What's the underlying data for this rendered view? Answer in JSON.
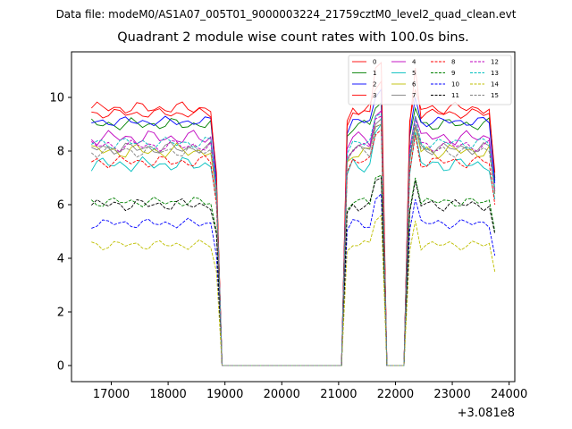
{
  "suptitle": "Data file: modeM0/AS1A07_005T01_9000003224_21759cztM0_level2_quad_clean.evt",
  "chart_data": {
    "type": "line",
    "title": "Quadrant 2 module wise count rates with 100.0s bins.",
    "xlabel": "",
    "ylabel": "",
    "x_offset_label": "+3.081e8",
    "x_offset": 308100000,
    "xlim": [
      16300,
      24100
    ],
    "ylim": [
      -0.6,
      11.7
    ],
    "x_ticks": [
      17000,
      18000,
      19000,
      20000,
      21000,
      22000,
      23000,
      24000
    ],
    "x_tick_labels": [
      "17000",
      "18000",
      "19000",
      "20000",
      "21000",
      "22000",
      "23000",
      "24000"
    ],
    "y_ticks": [
      0,
      2,
      4,
      6,
      8,
      10
    ],
    "y_tick_labels": [
      "0",
      "2",
      "4",
      "6",
      "8",
      "10"
    ],
    "grid": false,
    "legend_position": "top-right",
    "legend_columns": 4,
    "bin_seconds": 100,
    "x_start": 16650,
    "segments": [
      {
        "start": 16650,
        "end": 18850,
        "state": "on"
      },
      {
        "start": 18950,
        "end": 21050,
        "state": "off"
      },
      {
        "start": 21150,
        "end": 21750,
        "state": "on"
      },
      {
        "start": 21850,
        "end": 22150,
        "state": "off"
      },
      {
        "start": 22250,
        "end": 23750,
        "state": "on"
      }
    ],
    "series": [
      {
        "name": "0",
        "color": "#ff0000",
        "dash": "solid",
        "level": 9.6,
        "amp": 0.25,
        "peak1": 10.3,
        "peak2": 10.6,
        "last": 7.0
      },
      {
        "name": "1",
        "color": "#008000",
        "dash": "solid",
        "level": 9.0,
        "amp": 0.25,
        "peak1": 9.6,
        "peak2": 9.8,
        "last": 6.9
      },
      {
        "name": "2",
        "color": "#0000ff",
        "dash": "solid",
        "level": 9.1,
        "amp": 0.2,
        "peak1": 10.0,
        "peak2": 10.3,
        "last": 6.8
      },
      {
        "name": "3",
        "color": "#ff0000",
        "dash": "solid",
        "level": 9.4,
        "amp": 0.2,
        "peak1": 11.1,
        "peak2": 11.3,
        "last": 7.2
      },
      {
        "name": "4",
        "color": "#bf00bf",
        "dash": "solid",
        "level": 8.5,
        "amp": 0.3,
        "peak1": 9.3,
        "peak2": 9.5,
        "last": 6.5
      },
      {
        "name": "5",
        "color": "#00bfbf",
        "dash": "solid",
        "level": 7.5,
        "amp": 0.3,
        "peak1": 8.7,
        "peak2": 9.0,
        "last": 6.2
      },
      {
        "name": "6",
        "color": "#bfbf00",
        "dash": "solid",
        "level": 8.0,
        "amp": 0.3,
        "peak1": 8.9,
        "peak2": 9.0,
        "last": 6.4
      },
      {
        "name": "7",
        "color": "#808080",
        "dash": "solid",
        "level": 8.1,
        "amp": 0.25,
        "peak1": 9.0,
        "peak2": 9.2,
        "last": 6.5
      },
      {
        "name": "8",
        "color": "#ff0000",
        "dash": "dashed",
        "level": 7.6,
        "amp": 0.25,
        "peak1": 8.6,
        "peak2": 8.8,
        "last": 6.0
      },
      {
        "name": "9",
        "color": "#008000",
        "dash": "dashed",
        "level": 6.1,
        "amp": 0.2,
        "peak1": 7.0,
        "peak2": 7.1,
        "last": 5.0
      },
      {
        "name": "10",
        "color": "#0000ff",
        "dash": "dashed",
        "level": 5.3,
        "amp": 0.2,
        "peak1": 6.2,
        "peak2": 6.4,
        "last": 4.1
      },
      {
        "name": "11",
        "color": "#000000",
        "dash": "dashed",
        "level": 6.0,
        "amp": 0.25,
        "peak1": 6.9,
        "peak2": 7.0,
        "last": 4.9
      },
      {
        "name": "12",
        "color": "#bf00bf",
        "dash": "dashed",
        "level": 8.2,
        "amp": 0.25,
        "peak1": 9.2,
        "peak2": 9.3,
        "last": 6.5
      },
      {
        "name": "13",
        "color": "#00bfbf",
        "dash": "dashed",
        "level": 8.3,
        "amp": 0.25,
        "peak1": 9.3,
        "peak2": 9.4,
        "last": 6.6
      },
      {
        "name": "14",
        "color": "#bfbf00",
        "dash": "dashed",
        "level": 4.5,
        "amp": 0.2,
        "peak1": 5.4,
        "peak2": 5.6,
        "last": 3.5
      },
      {
        "name": "15",
        "color": "#808080",
        "dash": "dashed",
        "level": 8.0,
        "amp": 0.25,
        "peak1": 8.9,
        "peak2": 9.0,
        "last": 6.4
      }
    ]
  }
}
